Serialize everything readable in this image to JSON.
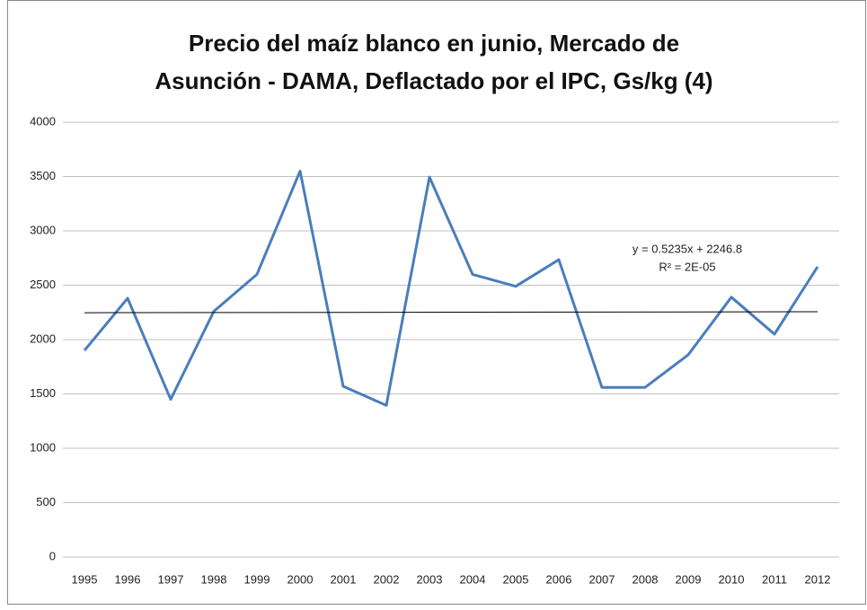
{
  "chart_data": {
    "type": "line",
    "title": [
      "Precio del maíz blanco en junio, Mercado de",
      "Asunción - DAMA, Deflactado por el IPC, Gs/kg (4)"
    ],
    "categories": [
      "1995",
      "1996",
      "1997",
      "1998",
      "1999",
      "2000",
      "2001",
      "2002",
      "2003",
      "2004",
      "2005",
      "2006",
      "2007",
      "2008",
      "2009",
      "2010",
      "2011",
      "2012"
    ],
    "series": [
      {
        "color": "#4a7ebb",
        "values": [
          1900,
          2380,
          1450,
          2260,
          2600,
          3550,
          1570,
          1395,
          3495,
          2600,
          2490,
          2735,
          1560,
          1560,
          1860,
          2390,
          2050,
          2670
        ]
      }
    ],
    "trendline": {
      "equation_label": "y = 0.5235x + 2246.8",
      "r2_label": "R² = 2E-05",
      "slope": 0.5235,
      "intercept": 2246.8,
      "color": "#000000"
    },
    "ylim": [
      0,
      4000
    ],
    "yticks": [
      0,
      500,
      1000,
      1500,
      2000,
      2500,
      3000,
      3500,
      4000
    ],
    "grid": true
  }
}
